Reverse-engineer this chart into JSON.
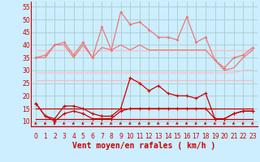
{
  "hours": [
    0,
    1,
    2,
    3,
    4,
    5,
    6,
    7,
    8,
    9,
    10,
    11,
    12,
    13,
    14,
    15,
    16,
    17,
    18,
    19,
    20,
    21,
    22,
    23
  ],
  "rafales": [
    35,
    36,
    40,
    41,
    36,
    41,
    35,
    47,
    38,
    53,
    48,
    49,
    46,
    43,
    43,
    42,
    51,
    41,
    43,
    34,
    31,
    35,
    36,
    39
  ],
  "vent_moyen": [
    35,
    35,
    40,
    40,
    35,
    40,
    35,
    39,
    38,
    40,
    38,
    40,
    38,
    38,
    38,
    38,
    38,
    38,
    38,
    34,
    30,
    31,
    35,
    38
  ],
  "flat_upper1": [
    38,
    38,
    38,
    38,
    38,
    38,
    38,
    38,
    38,
    38,
    38,
    38,
    38,
    38,
    38,
    38,
    38,
    38,
    38,
    38,
    38,
    38,
    38,
    38
  ],
  "flat_upper2": [
    29,
    29,
    29,
    29,
    29,
    29,
    29,
    29,
    29,
    29,
    29,
    29,
    29,
    29,
    29,
    29,
    29,
    29,
    29,
    29,
    29,
    29,
    30,
    30
  ],
  "flat_lower1": [
    26,
    26,
    26,
    26,
    26,
    26,
    26,
    26,
    26,
    26,
    26,
    26,
    26,
    26,
    26,
    26,
    26,
    26,
    26,
    26,
    26,
    26,
    26,
    26
  ],
  "vent_inst": [
    17,
    12,
    11,
    16,
    16,
    15,
    13,
    12,
    12,
    15,
    27,
    25,
    22,
    24,
    21,
    20,
    20,
    19,
    21,
    11,
    11,
    13,
    14,
    14
  ],
  "vent_min": [
    17,
    12,
    10,
    13,
    14,
    13,
    11,
    11,
    11,
    14,
    15,
    15,
    15,
    15,
    15,
    15,
    15,
    15,
    15,
    11,
    11,
    13,
    14,
    14
  ],
  "flat_dark1": [
    15,
    15,
    15,
    15,
    15,
    15,
    15,
    15,
    15,
    15,
    15,
    15,
    15,
    15,
    15,
    15,
    15,
    15,
    15,
    15,
    15,
    15,
    15,
    15
  ],
  "flat_dark2": [
    11,
    11,
    11,
    11,
    11,
    11,
    11,
    11,
    11,
    11,
    11,
    11,
    11,
    11,
    11,
    11,
    11,
    11,
    11,
    11,
    11,
    11,
    11,
    11
  ],
  "background": "#cceeff",
  "grid_color": "#aacccc",
  "color_dark": "#cc0000",
  "color_mid": "#ee7777",
  "color_light": "#ffbbbb",
  "xlabel": "Vent moyen/en rafales ( km/h )",
  "ylim": [
    8,
    57
  ],
  "yticks": [
    10,
    15,
    20,
    25,
    30,
    35,
    40,
    45,
    50,
    55
  ],
  "xlabel_fontsize": 7,
  "tick_fontsize": 5.5
}
